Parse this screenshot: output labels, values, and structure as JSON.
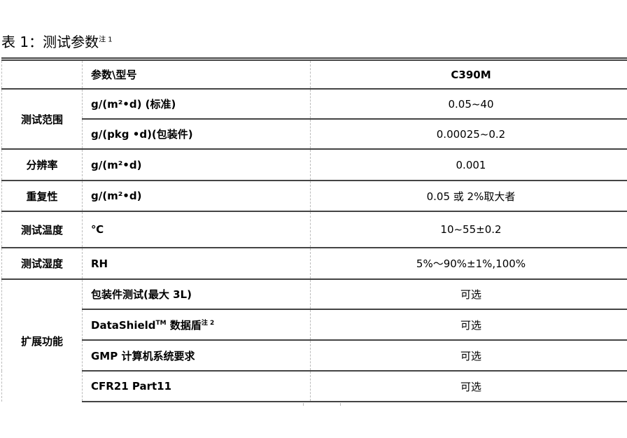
{
  "caption": {
    "text": "表 1：测试参数",
    "note": "注 1"
  },
  "header": {
    "param": "参数\\型号",
    "model": "C390M"
  },
  "rows": [
    {
      "group": "测试范围",
      "param": "g/(m²•d) (标准)",
      "value": "0.05~40"
    },
    {
      "group": "",
      "param": "g/(pkg •d)(包装件)",
      "value": "0.00025~0.2"
    },
    {
      "group": "分辨率",
      "param": "g/(m²•d)",
      "value": "0.001"
    },
    {
      "group": "重复性",
      "param": "g/(m²•d)",
      "value": "0.05 或 2%取大者"
    },
    {
      "group": "测试温度",
      "param": "℃",
      "value": "10~55±0.2"
    },
    {
      "group": "测试湿度",
      "param": "RH",
      "value": "5%～90%±1%,100%"
    },
    {
      "group": "扩展功能",
      "param": "包装件测试(最大 3L)",
      "value": "可选"
    },
    {
      "group": "",
      "param": "DataShield",
      "param_sup": "TM",
      "param_tail": " 数据盾",
      "param_note": "注 2",
      "value": "可选"
    },
    {
      "group": "",
      "param": "GMP 计算机系统要求",
      "value": "可选"
    },
    {
      "group": "",
      "param": "CFR21 Part11",
      "value": "可选"
    }
  ]
}
